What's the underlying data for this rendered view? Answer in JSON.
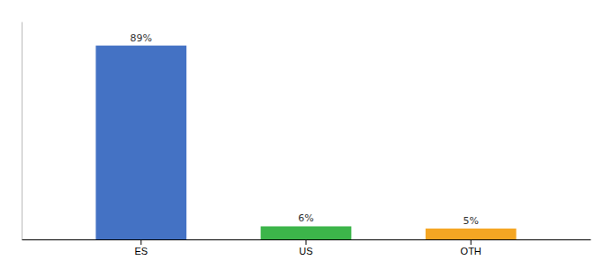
{
  "chart_data": {
    "type": "bar",
    "categories": [
      "ES",
      "US",
      "OTH"
    ],
    "values": [
      89,
      6,
      5
    ],
    "value_labels": [
      "89%",
      "6%",
      "5%"
    ],
    "colors": [
      "#4472C4",
      "#3CB54A",
      "#F5A623"
    ],
    "ylim": [
      0,
      100
    ],
    "data_labels": true,
    "tick_labels": "x"
  }
}
